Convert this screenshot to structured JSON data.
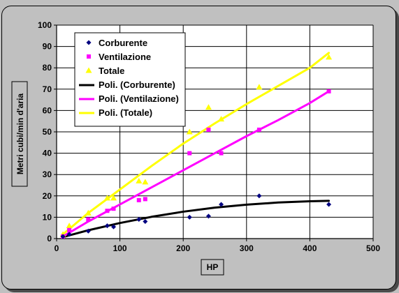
{
  "chart_data": {
    "type": "scatter",
    "xlabel": "HP",
    "ylabel": "Metri cubi/min d'aria",
    "xlim": [
      0,
      500
    ],
    "ylim": [
      0,
      100
    ],
    "xticks": [
      0,
      100,
      200,
      300,
      400,
      500
    ],
    "yticks": [
      0,
      10,
      20,
      30,
      40,
      50,
      60,
      70,
      80,
      90,
      100
    ],
    "grid": true,
    "legend_position": "top-left",
    "series": [
      {
        "name": "Corburente",
        "marker": "diamond",
        "color": "#000080",
        "x": [
          10,
          20,
          50,
          80,
          90,
          130,
          140,
          210,
          240,
          260,
          320,
          430
        ],
        "y": [
          1,
          2,
          3.5,
          6,
          5.5,
          9,
          8,
          10,
          10.5,
          16,
          20,
          16
        ]
      },
      {
        "name": "Ventilazione",
        "marker": "square",
        "color": "#ff00ff",
        "x": [
          10,
          20,
          50,
          80,
          90,
          130,
          140,
          210,
          240,
          260,
          320,
          430
        ],
        "y": [
          1,
          4,
          9,
          13,
          14,
          18,
          18.5,
          40,
          51,
          40,
          51,
          69
        ]
      },
      {
        "name": "Totale",
        "marker": "triangle",
        "color": "#ffff00",
        "x": [
          10,
          20,
          50,
          80,
          90,
          130,
          140,
          210,
          240,
          260,
          320,
          430
        ],
        "y": [
          2,
          6,
          12,
          19,
          19,
          27,
          26.5,
          50,
          61.5,
          56,
          71,
          85
        ]
      }
    ],
    "trendlines": [
      {
        "name": "Poli. (Corburente)",
        "color": "#000000",
        "x": [
          10,
          50,
          100,
          150,
          200,
          250,
          300,
          350,
          400,
          430
        ],
        "y": [
          0.7,
          3.9,
          7.3,
          10.2,
          12.6,
          14.5,
          15.9,
          16.9,
          17.5,
          17.7
        ]
      },
      {
        "name": "Poli. (Ventilazione)",
        "color": "#ff00ff",
        "x": [
          10,
          50,
          100,
          150,
          200,
          250,
          300,
          350,
          400,
          430
        ],
        "y": [
          1.0,
          8.0,
          16.0,
          24.0,
          32.0,
          40.0,
          48.0,
          55.5,
          63.5,
          69.0
        ]
      },
      {
        "name": "Poli. (Totale)",
        "color": "#ffff00",
        "x": [
          10,
          50,
          100,
          150,
          200,
          250,
          300,
          350,
          400,
          430
        ],
        "y": [
          2.0,
          12.0,
          23.0,
          34.0,
          44.5,
          54.0,
          63.0,
          71.5,
          80.0,
          87.0
        ]
      }
    ]
  }
}
